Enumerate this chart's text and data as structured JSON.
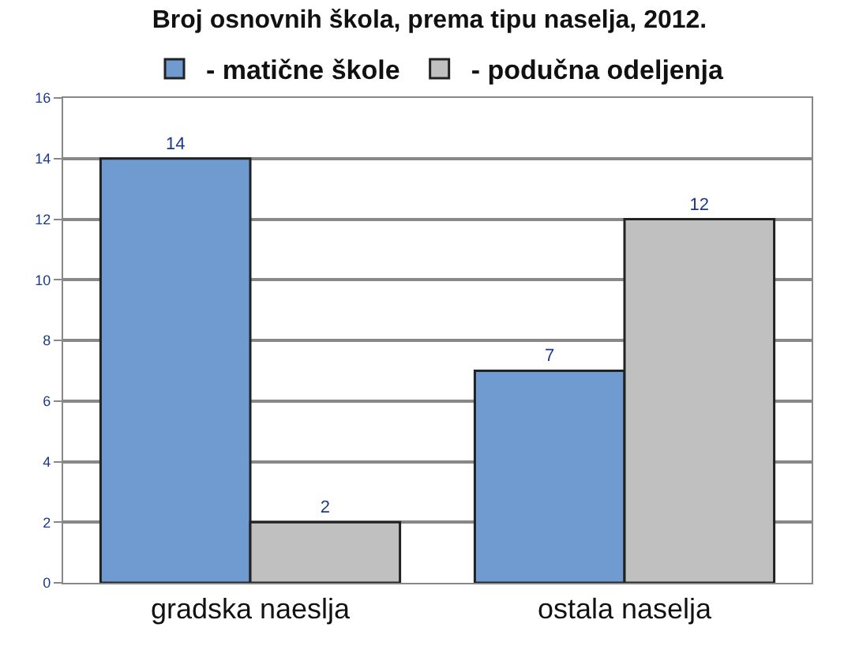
{
  "chart_data": {
    "type": "bar",
    "title": "Broj osnovnih škola, prema tipu naselja, 2012.",
    "categories": [
      "gradska naeslja",
      "ostala naselja"
    ],
    "series": [
      {
        "name": "- matične škole",
        "color": "#6f9bd1",
        "values": [
          14,
          7
        ]
      },
      {
        "name": "- podučna odeljenja",
        "color": "#c0c0c0",
        "values": [
          2,
          12
        ]
      }
    ],
    "ylim": [
      0,
      16
    ],
    "yticks": [
      0,
      2,
      4,
      6,
      8,
      10,
      12,
      14,
      16
    ],
    "grid": "y",
    "legend": "top",
    "data_labels": true
  }
}
